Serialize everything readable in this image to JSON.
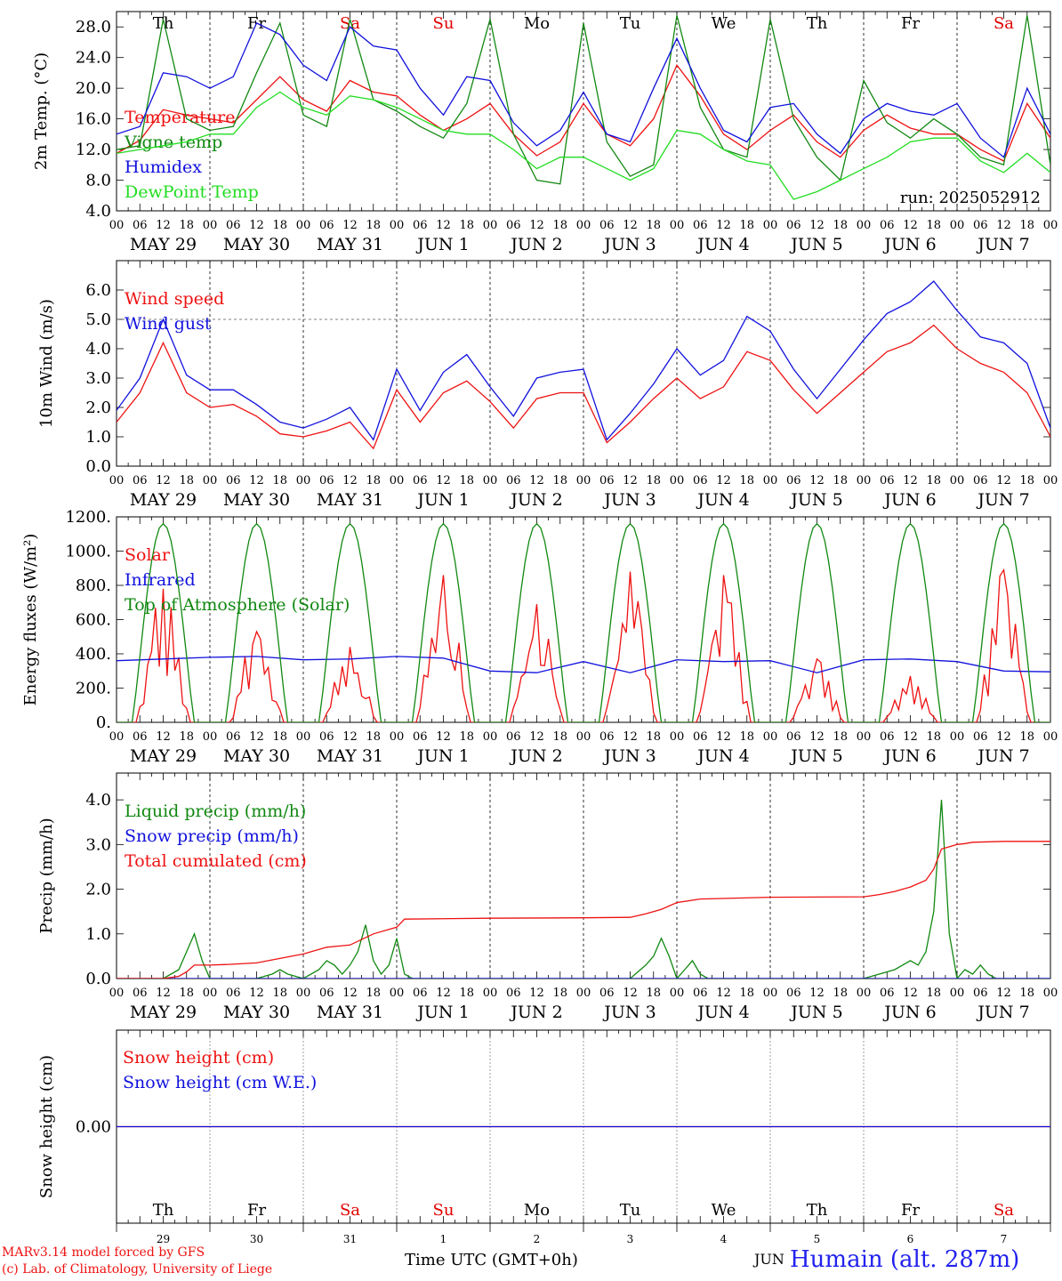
{
  "axis_hours": [
    "00",
    "06",
    "12",
    "18"
  ],
  "axis_end_hour": "00",
  "date_labels": [
    "MAY 29",
    "MAY 30",
    "MAY 31",
    "JUN  1",
    "JUN  2",
    "JUN  3",
    "JUN  4",
    "JUN  5",
    "JUN  6",
    "JUN  7"
  ],
  "weekdays": [
    {
      "label": "Th",
      "color": "#000000"
    },
    {
      "label": "Fr",
      "color": "#000000"
    },
    {
      "label": "Sa",
      "color": "#e00000"
    },
    {
      "label": "Su",
      "color": "#e00000"
    },
    {
      "label": "Mo",
      "color": "#000000"
    },
    {
      "label": "Tu",
      "color": "#000000"
    },
    {
      "label": "We",
      "color": "#000000"
    },
    {
      "label": "Th",
      "color": "#000000"
    },
    {
      "label": "Fr",
      "color": "#000000"
    },
    {
      "label": "Sa",
      "color": "#e00000"
    }
  ],
  "day_numbers": [
    "29",
    "30",
    "31",
    "1",
    "2",
    "3",
    "4",
    "5",
    "6",
    "7"
  ],
  "month_label": "JUN",
  "run_label": "run: 2025052912",
  "footer": {
    "model": "MARv3.14 model forced by GFS",
    "lab": "(c) Lab. of Climatology, University of Liege",
    "time_axis": "Time UTC (GMT+0h)",
    "station": "Humain (alt. 287m)"
  },
  "colors": {
    "red": "#ee1111",
    "green": "#118811",
    "blue": "#1111dd",
    "lightgreen": "#22dd22"
  },
  "chart_data": [
    {
      "type": "line",
      "ylabel": "2m Temp. (°C)",
      "ylim": [
        4,
        30
      ],
      "yticks": [
        4.0,
        8.0,
        12.0,
        16.0,
        20.0,
        24.0,
        28.0
      ],
      "ytick_labels": [
        "4.0",
        "8.0",
        "12.0",
        "16.0",
        "20.0",
        "24.0",
        "28.0"
      ],
      "x_unit": "hours since MAY 29 00 UTC",
      "xlim": [
        0,
        240
      ],
      "series": [
        {
          "name": "Temperature",
          "color": "#ee1111",
          "x": [
            0,
            6,
            12,
            18,
            24,
            30,
            36,
            42,
            48,
            54,
            60,
            66,
            72,
            78,
            84,
            90,
            96,
            102,
            108,
            114,
            120,
            126,
            132,
            138,
            144,
            150,
            156,
            162,
            168,
            174,
            180,
            186,
            192,
            198,
            204,
            210,
            216,
            222,
            228,
            234,
            240
          ],
          "y": [
            11.5,
            13.2,
            17.2,
            16.5,
            16.0,
            15.5,
            18.5,
            21.5,
            18.5,
            17.0,
            21.0,
            19.5,
            19.0,
            16.5,
            14.5,
            16.0,
            18.0,
            14.0,
            11.2,
            13.0,
            18.0,
            14.0,
            12.5,
            16.0,
            23.0,
            19.0,
            14.0,
            12.0,
            14.5,
            16.5,
            13.0,
            11.0,
            14.5,
            16.5,
            14.8,
            14.0,
            14.0,
            12.0,
            10.5,
            18.0,
            13.5
          ]
        },
        {
          "name": "Vigne temp",
          "color": "#118811",
          "x": [
            0,
            6,
            12,
            18,
            24,
            30,
            36,
            42,
            48,
            54,
            60,
            66,
            72,
            78,
            84,
            90,
            96,
            102,
            108,
            114,
            120,
            126,
            132,
            138,
            144,
            150,
            156,
            162,
            168,
            174,
            180,
            186,
            192,
            198,
            204,
            210,
            216,
            222,
            228,
            234,
            240
          ],
          "y": [
            12.0,
            12.5,
            29.0,
            16.0,
            14.5,
            15.0,
            22.0,
            28.5,
            16.5,
            15.0,
            29.0,
            18.5,
            17.0,
            15.0,
            13.5,
            18.0,
            29.0,
            14.0,
            8.0,
            7.5,
            28.5,
            13.0,
            8.5,
            10.0,
            29.5,
            17.5,
            12.0,
            11.0,
            29.0,
            16.0,
            11.0,
            8.0,
            21.0,
            15.5,
            13.5,
            16.0,
            14.0,
            11.0,
            10.0,
            29.5,
            10.0
          ]
        },
        {
          "name": "Humidex",
          "color": "#1111dd",
          "x": [
            0,
            6,
            12,
            18,
            24,
            30,
            36,
            42,
            48,
            54,
            60,
            66,
            72,
            78,
            84,
            90,
            96,
            102,
            108,
            114,
            120,
            126,
            132,
            138,
            144,
            150,
            156,
            162,
            168,
            174,
            180,
            186,
            192,
            198,
            204,
            210,
            216,
            222,
            228,
            234,
            240
          ],
          "y": [
            14.0,
            15.0,
            22.0,
            21.5,
            20.0,
            21.5,
            28.5,
            27.0,
            23.0,
            21.0,
            28.0,
            25.5,
            25.0,
            20.0,
            16.5,
            21.5,
            21.0,
            15.5,
            12.5,
            14.5,
            19.5,
            14.0,
            13.0,
            20.0,
            26.5,
            20.0,
            14.5,
            13.0,
            17.5,
            18.0,
            14.0,
            11.5,
            16.0,
            18.0,
            17.0,
            16.5,
            18.0,
            13.5,
            11.0,
            20.0,
            14.0
          ]
        },
        {
          "name": "DewPoint Temp",
          "color": "#22dd22",
          "x": [
            0,
            6,
            12,
            18,
            24,
            30,
            36,
            42,
            48,
            54,
            60,
            66,
            72,
            78,
            84,
            90,
            96,
            102,
            108,
            114,
            120,
            126,
            132,
            138,
            144,
            150,
            156,
            162,
            168,
            174,
            180,
            186,
            192,
            198,
            204,
            210,
            216,
            222,
            228,
            234,
            240
          ],
          "y": [
            11.5,
            12.0,
            12.5,
            13.0,
            14.0,
            14.0,
            17.5,
            19.5,
            17.5,
            16.5,
            19.0,
            18.5,
            17.5,
            16.0,
            14.5,
            14.0,
            14.0,
            12.0,
            9.5,
            11.0,
            11.0,
            9.5,
            8.0,
            9.5,
            14.5,
            14.0,
            12.0,
            10.5,
            10.0,
            5.5,
            6.5,
            8.0,
            9.5,
            11.0,
            13.0,
            13.5,
            13.5,
            10.5,
            9.0,
            11.5,
            9.0
          ]
        }
      ]
    },
    {
      "type": "line",
      "ylabel": "10m Wind (m/s)",
      "ylim": [
        0,
        7
      ],
      "yticks": [
        0,
        1,
        2,
        3,
        4,
        5,
        6
      ],
      "ytick_labels": [
        "0.0",
        "1.0",
        "2.0",
        "3.0",
        "4.0",
        "5.0",
        "6.0"
      ],
      "reference_line": 5.0,
      "x_unit": "hours since MAY 29 00 UTC",
      "xlim": [
        0,
        240
      ],
      "series": [
        {
          "name": "Wind speed",
          "color": "#ee1111",
          "x": [
            0,
            6,
            12,
            18,
            24,
            30,
            36,
            42,
            48,
            54,
            60,
            66,
            72,
            78,
            84,
            90,
            96,
            102,
            108,
            114,
            120,
            126,
            132,
            138,
            144,
            150,
            156,
            162,
            168,
            174,
            180,
            186,
            192,
            198,
            204,
            210,
            216,
            222,
            228,
            234,
            240
          ],
          "y": [
            1.5,
            2.5,
            4.2,
            2.5,
            2.0,
            2.1,
            1.7,
            1.1,
            1.0,
            1.2,
            1.5,
            0.6,
            2.6,
            1.5,
            2.5,
            2.9,
            2.2,
            1.3,
            2.3,
            2.5,
            2.5,
            0.8,
            1.5,
            2.3,
            3.0,
            2.3,
            2.7,
            3.9,
            3.6,
            2.6,
            1.8,
            2.5,
            3.2,
            3.9,
            4.2,
            4.8,
            4.0,
            3.5,
            3.2,
            2.5,
            1.0
          ]
        },
        {
          "name": "Wind gust",
          "color": "#1111dd",
          "x": [
            0,
            6,
            12,
            18,
            24,
            30,
            36,
            42,
            48,
            54,
            60,
            66,
            72,
            78,
            84,
            90,
            96,
            102,
            108,
            114,
            120,
            126,
            132,
            138,
            144,
            150,
            156,
            162,
            168,
            174,
            180,
            186,
            192,
            198,
            204,
            210,
            216,
            222,
            228,
            234,
            240
          ],
          "y": [
            1.9,
            3.0,
            5.0,
            3.1,
            2.6,
            2.6,
            2.1,
            1.5,
            1.3,
            1.6,
            2.0,
            0.9,
            3.3,
            1.9,
            3.2,
            3.8,
            2.7,
            1.7,
            3.0,
            3.2,
            3.3,
            0.9,
            1.8,
            2.8,
            4.0,
            3.1,
            3.6,
            5.1,
            4.6,
            3.3,
            2.3,
            3.3,
            4.3,
            5.2,
            5.6,
            6.3,
            5.3,
            4.4,
            4.2,
            3.5,
            1.3
          ]
        }
      ]
    },
    {
      "type": "line",
      "ylabel": "Energy fluxes (W/m²)",
      "ylim": [
        0,
        1200
      ],
      "yticks": [
        0,
        200,
        400,
        600,
        800,
        1000,
        1200
      ],
      "ytick_labels": [
        "0.",
        "200.",
        "400.",
        "600.",
        "800.",
        "1000.",
        "1200."
      ],
      "x_unit": "hours since MAY 29 00 UTC",
      "xlim": [
        0,
        240
      ],
      "series": [
        {
          "name": "Solar",
          "color": "#ee1111",
          "daily_peak": [
            780,
            530,
            440,
            860,
            690,
            880,
            860,
            370,
            270,
            890
          ]
        },
        {
          "name": "Infrared",
          "color": "#1111dd",
          "x": [
            0,
            12,
            24,
            36,
            48,
            60,
            72,
            84,
            96,
            108,
            120,
            132,
            144,
            156,
            168,
            180,
            192,
            204,
            216,
            228,
            240
          ],
          "y": [
            360,
            370,
            380,
            385,
            365,
            370,
            385,
            375,
            300,
            290,
            355,
            290,
            365,
            355,
            360,
            290,
            365,
            370,
            355,
            300,
            295
          ]
        },
        {
          "name": "Top of Atmosphere (Solar)",
          "color": "#118811",
          "daily_peak": 1160
        }
      ]
    },
    {
      "type": "line",
      "ylabel": "Precip (mm/h)",
      "ylim": [
        0,
        4.6
      ],
      "yticks": [
        0,
        1,
        2,
        3,
        4
      ],
      "ytick_labels": [
        "0.0",
        "1.0",
        "2.0",
        "3.0",
        "4.0"
      ],
      "x_unit": "hours since MAY 29 00 UTC",
      "xlim": [
        0,
        240
      ],
      "series": [
        {
          "name": "Liquid precip (mm/h)",
          "color": "#118811",
          "x": [
            0,
            12,
            16,
            18,
            20,
            22,
            24,
            36,
            40,
            42,
            44,
            48,
            52,
            54,
            56,
            58,
            60,
            62,
            64,
            66,
            68,
            70,
            72,
            74,
            76,
            84,
            96,
            120,
            132,
            136,
            138,
            140,
            142,
            144,
            146,
            148,
            150,
            152,
            158,
            192,
            200,
            204,
            206,
            208,
            210,
            212,
            214,
            216,
            218,
            220,
            222,
            224,
            226,
            228,
            230,
            240
          ],
          "y": [
            0,
            0,
            0.2,
            0.6,
            1.0,
            0.4,
            0,
            0,
            0.1,
            0.2,
            0.1,
            0,
            0.2,
            0.4,
            0.3,
            0.1,
            0.3,
            0.6,
            1.2,
            0.4,
            0.1,
            0.3,
            0.9,
            0.1,
            0,
            0,
            0,
            0,
            0,
            0.3,
            0.5,
            0.9,
            0.5,
            0,
            0.2,
            0.4,
            0.1,
            0,
            0,
            0,
            0.2,
            0.4,
            0.3,
            0.6,
            1.5,
            4.0,
            1.0,
            0,
            0.2,
            0.1,
            0.3,
            0.1,
            0,
            0,
            0,
            0
          ]
        },
        {
          "name": "Snow precip (mm/h)",
          "color": "#1111dd",
          "x": [
            0,
            240
          ],
          "y": [
            0,
            0
          ]
        },
        {
          "name": "Total cumulated (cm)",
          "color": "#ee1111",
          "x": [
            0,
            12,
            16,
            18,
            20,
            24,
            30,
            36,
            42,
            48,
            54,
            60,
            66,
            70,
            72,
            74,
            96,
            120,
            132,
            136,
            140,
            144,
            150,
            168,
            192,
            196,
            200,
            204,
            208,
            210,
            212,
            214,
            216,
            218,
            220,
            228,
            240
          ],
          "y": [
            0,
            0,
            0.05,
            0.15,
            0.3,
            0.3,
            0.32,
            0.35,
            0.45,
            0.55,
            0.7,
            0.75,
            1.0,
            1.1,
            1.15,
            1.33,
            1.35,
            1.36,
            1.37,
            1.45,
            1.55,
            1.7,
            1.78,
            1.82,
            1.83,
            1.88,
            1.95,
            2.05,
            2.2,
            2.45,
            2.9,
            2.95,
            3.0,
            3.02,
            3.05,
            3.07,
            3.07
          ]
        }
      ]
    },
    {
      "type": "line",
      "ylabel": "Snow height (cm)",
      "yticks": [
        0
      ],
      "ytick_labels": [
        "0.00"
      ],
      "x_unit": "hours since MAY 29 00 UTC",
      "xlim": [
        0,
        240
      ],
      "series": [
        {
          "name": "Snow height (cm)",
          "color": "#ee1111",
          "x": [
            0,
            240
          ],
          "y": [
            0,
            0
          ]
        },
        {
          "name": "Snow height (cm W.E.)",
          "color": "#1111dd",
          "x": [
            0,
            240
          ],
          "y": [
            0,
            0
          ]
        }
      ]
    }
  ]
}
